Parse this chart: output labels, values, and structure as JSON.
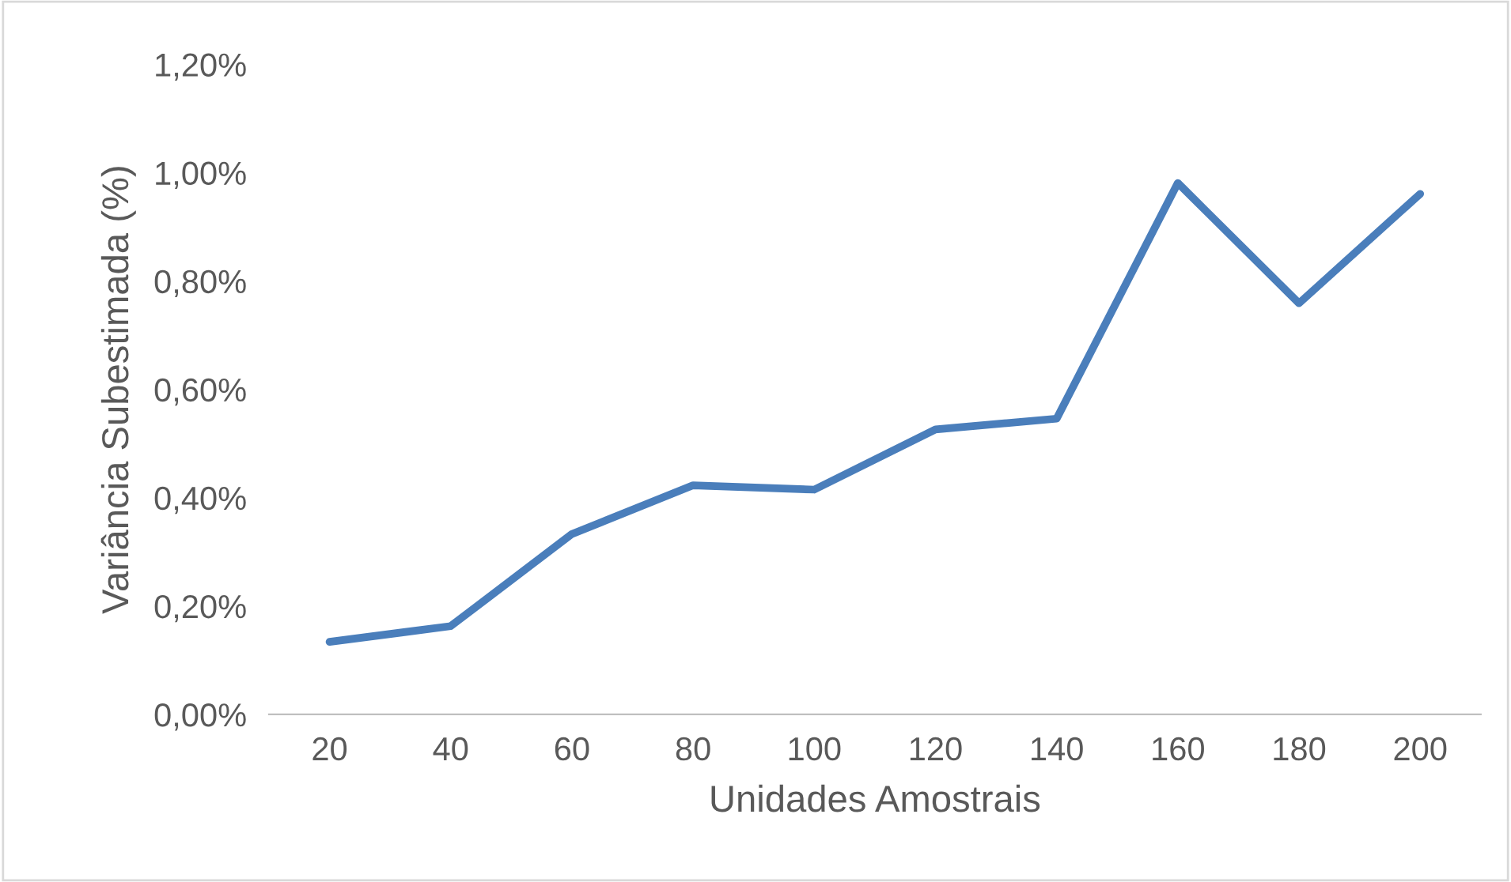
{
  "chart_data": {
    "type": "line",
    "xlabel": "Unidades Amostrais",
    "ylabel": "Variância Subestimada (%)",
    "categories": [
      "20",
      "40",
      "60",
      "80",
      "100",
      "120",
      "140",
      "160",
      "180",
      "200"
    ],
    "series": [
      {
        "color": "#4a7ebb",
        "values": [
          0.134,
          0.163,
          0.333,
          0.423,
          0.415,
          0.526,
          0.546,
          0.981,
          0.759,
          0.961
        ]
      }
    ],
    "ylim": [
      0,
      1.2
    ],
    "yticks": [
      {
        "value": 0,
        "label": "0,00%"
      },
      {
        "value": 0.2,
        "label": "0,20%"
      },
      {
        "value": 0.4,
        "label": "0,40%"
      },
      {
        "value": 0.6,
        "label": "0,60%"
      },
      {
        "value": 0.8,
        "label": "0,80%"
      },
      {
        "value": 1.0,
        "label": "1,00%"
      },
      {
        "value": 1.2,
        "label": "1,20%"
      }
    ],
    "grid": false,
    "legend": false,
    "marker": "none",
    "line_style": "solid"
  }
}
